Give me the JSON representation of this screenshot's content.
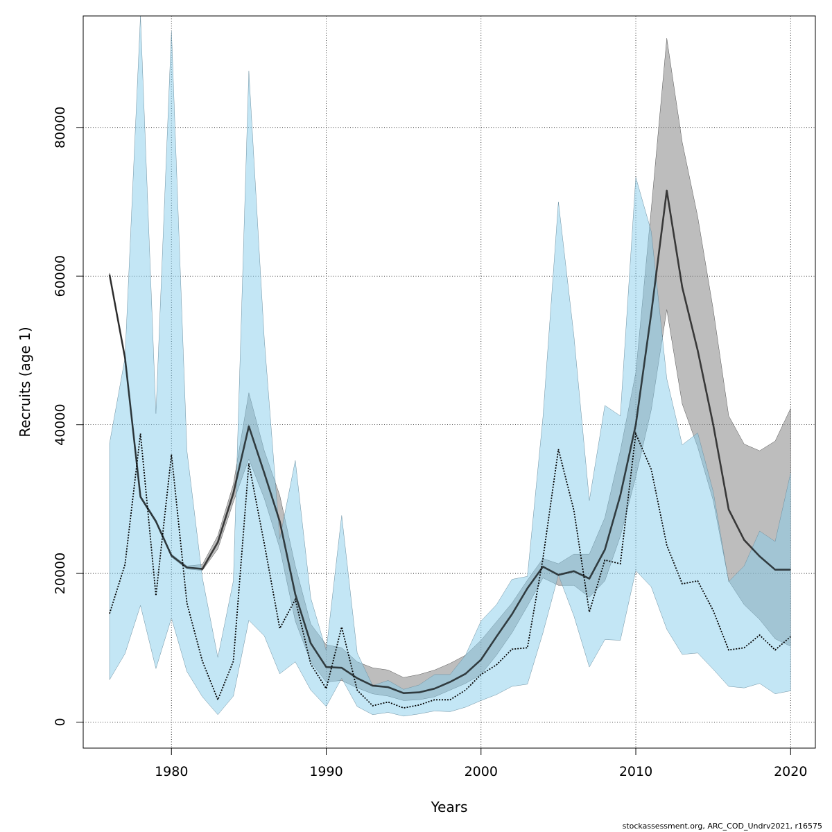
{
  "chart_data": {
    "type": "line",
    "xlabel": "Years",
    "ylabel": "Recruits (age 1)",
    "xlim": [
      1974.3,
      2021.6
    ],
    "ylim": [
      -3500,
      95000
    ],
    "x_ticks": [
      1980,
      1990,
      2000,
      2010,
      2020
    ],
    "y_ticks": [
      0,
      20000,
      40000,
      60000,
      80000
    ],
    "grid": true,
    "legend": "none",
    "footer": "stockassessment.org, ARC_COD_Undrv2021, r16575",
    "colors": {
      "blue_band": "#87ceeb",
      "grey_band": "#808080",
      "line": "#000000"
    },
    "series": [
      {
        "style": "solid",
        "x": [
          1976,
          1977,
          1978,
          1979,
          1980,
          1981,
          1982,
          1983,
          1984,
          1985,
          1986,
          1987,
          1988,
          1989,
          1990,
          1991,
          1992,
          1993,
          1994,
          1995,
          1996,
          1997,
          1998,
          1999,
          2000,
          2001,
          2002,
          2003,
          2004,
          2005,
          2006,
          2007,
          2008,
          2009,
          2010,
          2011,
          2012,
          2013,
          2014,
          2015,
          2016,
          2017,
          2018,
          2019,
          2020
        ],
        "y": [
          60200,
          49000,
          30300,
          27000,
          22400,
          20800,
          20600,
          24200,
          30800,
          39800,
          33500,
          27000,
          17200,
          10600,
          7400,
          7300,
          5900,
          4900,
          4700,
          3900,
          4000,
          4500,
          5400,
          6500,
          8400,
          11500,
          14500,
          18000,
          20900,
          19800,
          20300,
          19300,
          23200,
          30500,
          40000,
          55000,
          71500,
          58500,
          50000,
          40000,
          28600,
          24500,
          22300,
          20500,
          20500
        ],
        "lower": [
          60000,
          48700,
          30100,
          26800,
          22200,
          20600,
          20400,
          23300,
          29600,
          35400,
          30100,
          23400,
          13600,
          8100,
          5400,
          5600,
          4600,
          3800,
          3500,
          2900,
          3000,
          3400,
          4300,
          5200,
          6400,
          9000,
          12000,
          15600,
          19400,
          18400,
          18400,
          16800,
          19000,
          25000,
          33000,
          42000,
          55500,
          42800,
          37000,
          29800,
          19000,
          15800,
          13800,
          11200,
          10200
        ],
        "upper": [
          60400,
          49300,
          30500,
          27200,
          22600,
          21000,
          21200,
          25100,
          32000,
          44300,
          36500,
          30500,
          21000,
          13200,
          10400,
          10000,
          8100,
          7300,
          7000,
          6000,
          6400,
          7000,
          7900,
          9000,
          11000,
          13500,
          16000,
          19100,
          22000,
          21300,
          22600,
          22600,
          27500,
          36500,
          47000,
          69000,
          92000,
          78000,
          68000,
          55500,
          41200,
          37400,
          36500,
          37800,
          42200
        ]
      },
      {
        "style": "dotted",
        "x": [
          1976,
          1977,
          1978,
          1979,
          1980,
          1981,
          1982,
          1983,
          1984,
          1985,
          1986,
          1987,
          1988,
          1989,
          1990,
          1991,
          1992,
          1993,
          1994,
          1995,
          1996,
          1997,
          1998,
          1999,
          2000,
          2001,
          2002,
          2003,
          2004,
          2005,
          2006,
          2007,
          2008,
          2009,
          2010,
          2011,
          2012,
          2013,
          2014,
          2015,
          2016,
          2017,
          2018,
          2019,
          2020
        ],
        "y": [
          14600,
          21200,
          38800,
          17000,
          36000,
          16000,
          8200,
          3000,
          8200,
          34800,
          24000,
          12600,
          16500,
          7800,
          4500,
          12800,
          4300,
          2200,
          2700,
          1900,
          2300,
          3000,
          3000,
          4300,
          6400,
          7700,
          9800,
          10000,
          22000,
          36700,
          28500,
          14800,
          21800,
          21300,
          38800,
          34000,
          23800,
          18600,
          19000,
          15000,
          9700,
          10000,
          11700,
          9700,
          11500
        ],
        "lower": [
          5700,
          9200,
          15700,
          7200,
          14000,
          6800,
          3400,
          1000,
          3500,
          13700,
          11600,
          6500,
          8100,
          4300,
          2100,
          5900,
          2100,
          1000,
          1300,
          800,
          1100,
          1500,
          1400,
          2000,
          2900,
          3700,
          4800,
          5100,
          12000,
          19800,
          14300,
          7400,
          11100,
          11000,
          20400,
          18200,
          12500,
          9100,
          9300,
          7100,
          4800,
          4600,
          5200,
          3800,
          4200
        ],
        "upper": [
          37500,
          49000,
          95000,
          41500,
          93000,
          36500,
          19400,
          8700,
          19000,
          87600,
          51500,
          24600,
          35200,
          16700,
          9600,
          27800,
          9300,
          4900,
          5600,
          4400,
          5000,
          6400,
          6400,
          9000,
          13600,
          15800,
          19200,
          19600,
          41000,
          70000,
          52000,
          29800,
          42600,
          41200,
          73300,
          66000,
          46200,
          37300,
          38900,
          31000,
          18900,
          21000,
          25700,
          24300,
          33500
        ]
      }
    ]
  }
}
